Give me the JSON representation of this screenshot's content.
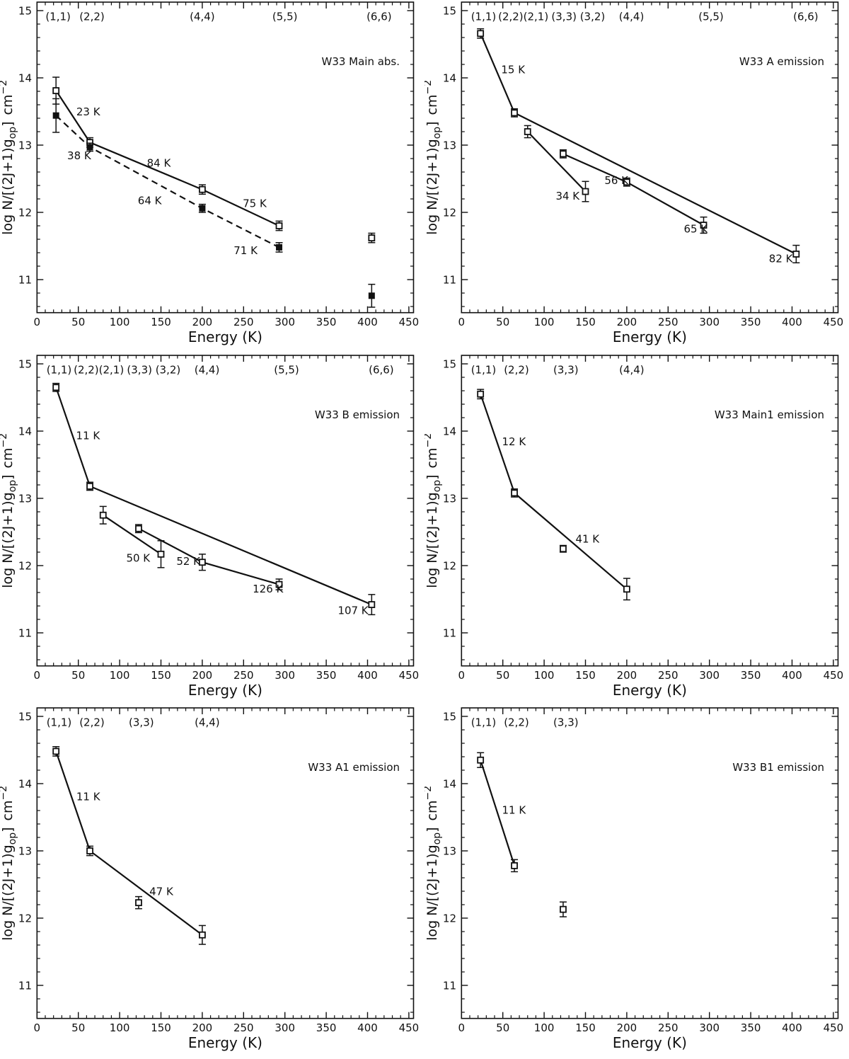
{
  "figure": {
    "xlabel": "Energy (K)",
    "ylabel_parts": [
      {
        "text": "log N/[(2J+1)g"
      },
      {
        "text": "op",
        "script": "sub"
      },
      {
        "text": "]"
      },
      {
        "text": "cm",
        "gap": 9
      },
      {
        "text": "−2",
        "script": "super"
      }
    ],
    "x_major_ticks": [
      0,
      50,
      100,
      150,
      200,
      250,
      300,
      350,
      400,
      450
    ],
    "x_minor_step": 10,
    "y_major_ticks": [
      11,
      12,
      13,
      14,
      15
    ],
    "y_minor_step": 0.2,
    "xlim": [
      0,
      455.7
    ],
    "ylim": [
      10.51,
      15.13
    ],
    "grid_lines": "off",
    "ink_color": "#111111",
    "background": "#ffffff"
  },
  "chart_data": [
    {
      "title": "W33 Main abs.",
      "type": "scatter",
      "state_labels": [
        {
          "text": "(1,1)",
          "x": 25.5
        },
        {
          "text": "(2,2)",
          "x": 66.5
        },
        {
          "text": "(4,4)",
          "x": 200
        },
        {
          "text": "(5,5)",
          "x": 300
        },
        {
          "text": "(6,6)",
          "x": 414
        }
      ],
      "series": [
        {
          "name": "open squares",
          "marker": "open-square",
          "points": [
            [
              23,
              13.81,
              0.2
            ],
            [
              64,
              13.04,
              0.07
            ],
            [
              200,
              12.34,
              0.07
            ],
            [
              293,
              11.8,
              0.07
            ],
            [
              405,
              11.62,
              0.07
            ]
          ]
        },
        {
          "name": "filled squares",
          "marker": "filled-square",
          "points": [
            [
              23,
              13.44,
              0.25
            ],
            [
              64,
              12.97,
              0.06
            ],
            [
              200,
              12.06,
              0.06
            ],
            [
              293,
              11.48,
              0.07
            ],
            [
              405,
              10.76,
              0.17
            ]
          ]
        }
      ],
      "fit_lines": [
        {
          "style": "solid",
          "points": [
            [
              23,
              13.81
            ],
            [
              64,
              13.04
            ],
            [
              200,
              12.34
            ],
            [
              293,
              11.8
            ]
          ]
        },
        {
          "style": "dashed",
          "points": [
            [
              23,
              13.44
            ],
            [
              64,
              12.97
            ],
            [
              200,
              12.06
            ],
            [
              293,
              11.48
            ]
          ]
        }
      ],
      "temp_labels": [
        {
          "text": "23 K",
          "x": 47.6,
          "y": 13.44
        },
        {
          "text": "38 K",
          "x": 36.6,
          "y": 12.79
        },
        {
          "text": "84 K",
          "x": 133,
          "y": 12.68
        },
        {
          "text": "64 K",
          "x": 122,
          "y": 12.12
        },
        {
          "text": "75 K",
          "x": 249,
          "y": 12.08
        },
        {
          "text": "71 K",
          "x": 238,
          "y": 11.38
        }
      ]
    },
    {
      "title": "W33 A emission",
      "type": "scatter",
      "state_labels": [
        {
          "text": "(1,1)",
          "x": 26.7
        },
        {
          "text": "(2,2)(2,1)",
          "x": 74.8
        },
        {
          "text": "(3,3) (3,2)",
          "x": 141.3
        },
        {
          "text": "(4,4)",
          "x": 205.7
        },
        {
          "text": "(5,5)",
          "x": 302
        },
        {
          "text": "(6,6)",
          "x": 416.6
        }
      ],
      "series": [
        {
          "name": "open squares",
          "marker": "open-square",
          "points": [
            [
              23,
              14.66,
              0.07
            ],
            [
              64,
              13.48,
              0.06
            ],
            [
              80,
              13.2,
              0.09
            ],
            [
              123,
              12.87,
              0.06
            ],
            [
              150,
              12.31,
              0.15
            ],
            [
              200,
              12.45,
              0.06
            ],
            [
              293,
              11.81,
              0.12
            ],
            [
              405,
              11.38,
              0.13
            ]
          ]
        }
      ],
      "fit_lines": [
        {
          "style": "solid",
          "points": [
            [
              23,
              14.66
            ],
            [
              64,
              13.48
            ]
          ]
        },
        {
          "style": "solid",
          "points": [
            [
              64,
              13.48
            ],
            [
              405,
              11.38
            ]
          ]
        },
        {
          "style": "solid",
          "points": [
            [
              80,
              13.2
            ],
            [
              150,
              12.31
            ]
          ]
        },
        {
          "style": "solid",
          "points": [
            [
              123,
              12.87
            ],
            [
              200,
              12.45
            ],
            [
              293,
              11.81
            ]
          ]
        }
      ],
      "temp_labels": [
        {
          "text": "15 K",
          "x": 48,
          "y": 14.07
        },
        {
          "text": "34 K",
          "x": 114,
          "y": 12.19
        },
        {
          "text": "56 K",
          "x": 173,
          "y": 12.42
        },
        {
          "text": "65 K",
          "x": 269,
          "y": 11.7
        },
        {
          "text": "82 K",
          "x": 372,
          "y": 11.26
        }
      ]
    },
    {
      "title": "W33 B emission",
      "type": "scatter",
      "state_labels": [
        {
          "text": "(1,1)",
          "x": 26.7
        },
        {
          "text": "(2,2)(2,1)",
          "x": 74.8
        },
        {
          "text": "(3,3) (3,2)",
          "x": 141.3
        },
        {
          "text": "(4,4)",
          "x": 205.7
        },
        {
          "text": "(5,5)",
          "x": 302
        },
        {
          "text": "(6,6)",
          "x": 416.6
        }
      ],
      "series": [
        {
          "name": "open squares",
          "marker": "open-square",
          "points": [
            [
              23,
              14.65,
              0.06
            ],
            [
              64,
              13.18,
              0.06
            ],
            [
              80,
              12.75,
              0.13
            ],
            [
              123,
              12.55,
              0.06
            ],
            [
              150,
              12.17,
              0.2
            ],
            [
              200,
              12.05,
              0.12
            ],
            [
              293,
              11.72,
              0.08
            ],
            [
              405,
              11.42,
              0.15
            ]
          ]
        }
      ],
      "fit_lines": [
        {
          "style": "solid",
          "points": [
            [
              23,
              14.65
            ],
            [
              64,
              13.18
            ]
          ]
        },
        {
          "style": "solid",
          "points": [
            [
              64,
              13.18
            ],
            [
              405,
              11.42
            ]
          ]
        },
        {
          "style": "solid",
          "points": [
            [
              80,
              12.75
            ],
            [
              150,
              12.17
            ]
          ]
        },
        {
          "style": "solid",
          "points": [
            [
              123,
              12.55
            ],
            [
              200,
              12.05
            ],
            [
              293,
              11.72
            ]
          ]
        }
      ],
      "temp_labels": [
        {
          "text": "11 K",
          "x": 47.3,
          "y": 13.88
        },
        {
          "text": "50 K",
          "x": 108,
          "y": 12.06
        },
        {
          "text": "52 K",
          "x": 168.7,
          "y": 12.01
        },
        {
          "text": "126 K",
          "x": 261,
          "y": 11.6
        },
        {
          "text": "107 K",
          "x": 364,
          "y": 11.28
        }
      ]
    },
    {
      "title": "W33 Main1 emission",
      "type": "scatter",
      "state_labels": [
        {
          "text": "(1,1)",
          "x": 26.7
        },
        {
          "text": "(2,2)",
          "x": 66.5
        },
        {
          "text": "(3,3)",
          "x": 126.3
        },
        {
          "text": "(4,4)",
          "x": 206
        }
      ],
      "series": [
        {
          "name": "open squares",
          "marker": "open-square",
          "points": [
            [
              23,
              14.55,
              0.07
            ],
            [
              64,
              13.08,
              0.06
            ],
            [
              123,
              12.25,
              0.05
            ],
            [
              200,
              11.65,
              0.16
            ]
          ]
        }
      ],
      "fit_lines": [
        {
          "style": "solid",
          "points": [
            [
              23,
              14.55
            ],
            [
              64,
              13.08
            ]
          ]
        },
        {
          "style": "solid",
          "points": [
            [
              64,
              13.08
            ],
            [
              200,
              11.65
            ]
          ]
        }
      ],
      "temp_labels": [
        {
          "text": "12 K",
          "x": 49,
          "y": 13.79
        },
        {
          "text": "41 K",
          "x": 138,
          "y": 12.34
        }
      ]
    },
    {
      "title": "W33 A1 emission",
      "type": "scatter",
      "state_labels": [
        {
          "text": "(1,1)",
          "x": 26.7
        },
        {
          "text": "(2,2)",
          "x": 66.5
        },
        {
          "text": "(3,3)",
          "x": 126.3
        },
        {
          "text": "(4,4)",
          "x": 206
        }
      ],
      "series": [
        {
          "name": "open squares",
          "marker": "open-square",
          "points": [
            [
              23,
              14.48,
              0.07
            ],
            [
              64,
              13.0,
              0.07
            ],
            [
              123,
              12.23,
              0.09
            ],
            [
              200,
              11.75,
              0.14
            ]
          ]
        }
      ],
      "fit_lines": [
        {
          "style": "solid",
          "points": [
            [
              23,
              14.48
            ],
            [
              64,
              13.0
            ]
          ]
        },
        {
          "style": "solid",
          "points": [
            [
              64,
              13.0
            ],
            [
              200,
              11.75
            ]
          ]
        }
      ],
      "temp_labels": [
        {
          "text": "11 K",
          "x": 47.6,
          "y": 13.75
        },
        {
          "text": "47 K",
          "x": 136,
          "y": 12.34
        }
      ]
    },
    {
      "title": "W33 B1 emission",
      "type": "scatter",
      "state_labels": [
        {
          "text": "(1,1)",
          "x": 26.7
        },
        {
          "text": "(2,2)",
          "x": 66.5
        },
        {
          "text": "(3,3)",
          "x": 126.3
        }
      ],
      "series": [
        {
          "name": "open squares",
          "marker": "open-square",
          "points": [
            [
              23,
              14.35,
              0.11
            ],
            [
              64,
              12.78,
              0.09
            ],
            [
              123,
              12.13,
              0.11
            ]
          ]
        }
      ],
      "fit_lines": [
        {
          "style": "solid",
          "points": [
            [
              23,
              14.35
            ],
            [
              64,
              12.78
            ]
          ]
        }
      ],
      "temp_labels": [
        {
          "text": "11 K",
          "x": 49,
          "y": 13.55
        }
      ]
    }
  ]
}
